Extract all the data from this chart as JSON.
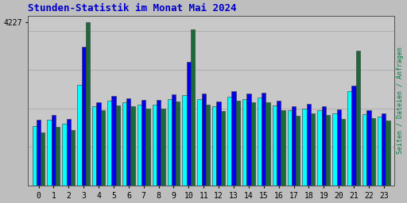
{
  "title": "Stunden-Statistik im Monat Mai 2024",
  "title_color": "#0000cc",
  "ylabel_right": "Seiten / Dateien / Anfragen",
  "ylabel_right_color": "#008040",
  "background_color": "#bebebe",
  "plot_bg_color": "#c8c8c8",
  "hours": [
    0,
    1,
    2,
    3,
    4,
    5,
    6,
    7,
    8,
    9,
    10,
    11,
    12,
    13,
    14,
    15,
    16,
    17,
    18,
    19,
    20,
    21,
    22,
    23
  ],
  "seiten": [
    1550,
    1700,
    1600,
    2600,
    2050,
    2200,
    2150,
    2100,
    2100,
    2250,
    2350,
    2250,
    2050,
    2300,
    2250,
    2280,
    2080,
    1950,
    2000,
    1950,
    1880,
    2450,
    1850,
    1780
  ],
  "dateien": [
    1700,
    1820,
    1720,
    3600,
    2150,
    2320,
    2270,
    2220,
    2220,
    2370,
    3200,
    2380,
    2180,
    2450,
    2380,
    2400,
    2200,
    2050,
    2120,
    2060,
    1980,
    2580,
    1960,
    1880
  ],
  "anfragen": [
    1380,
    1520,
    1440,
    4227,
    1950,
    2080,
    2050,
    2000,
    2000,
    2180,
    4050,
    2100,
    1940,
    2200,
    2150,
    2150,
    1950,
    1800,
    1880,
    1820,
    1730,
    3500,
    1750,
    1680
  ],
  "color_seiten": "#00ffff",
  "color_dateien": "#0000ee",
  "color_anfragen": "#1a6b3a",
  "bar_width": 0.28,
  "ylim": [
    0,
    4400
  ],
  "yticks": [
    4227
  ],
  "grid_color": "#aaaaaa",
  "grid_lines": [
    0,
    1000,
    2000,
    3000,
    4000
  ]
}
